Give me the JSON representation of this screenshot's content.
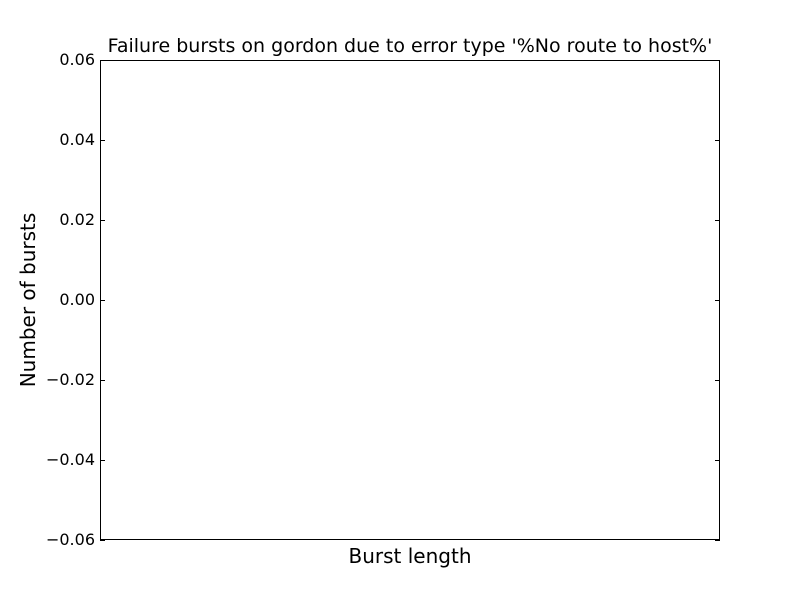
{
  "chart_data": {
    "type": "bar",
    "title": "Failure bursts on gordon due to error type '%No route to host%'",
    "xlabel": "Burst length",
    "ylabel": "Number of bursts",
    "categories": [],
    "values": [],
    "ylim": [
      -0.06,
      0.06
    ],
    "yticks": [
      0.06,
      0.04,
      0.02,
      0.0,
      -0.02,
      -0.04,
      -0.06
    ],
    "ytick_labels": [
      "0.06",
      "0.04",
      "0.02",
      "0.00",
      "−0.02",
      "−0.04",
      "−0.06"
    ],
    "xticks": [],
    "grid": false,
    "legend": "none"
  }
}
